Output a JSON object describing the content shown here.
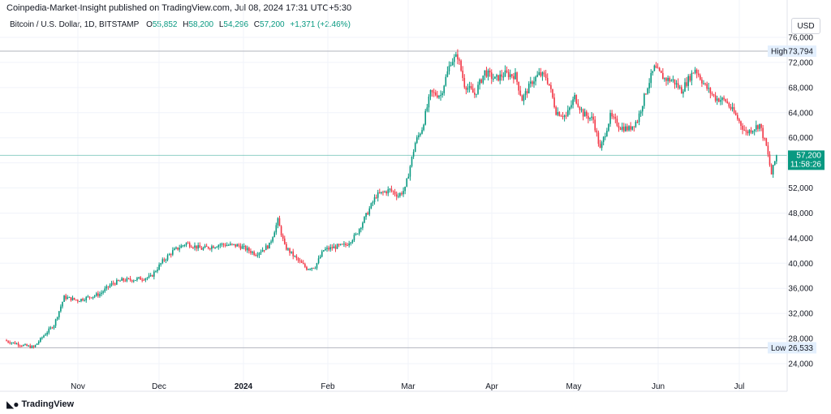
{
  "header": {
    "publisher_line": "Coinpedia-Market-Insight published on TradingView.com, Jul 08, 2024 17:31 UTC+5:30"
  },
  "legend": {
    "symbol": "Bitcoin / U.S. Dollar, 1D, BITSTAMP",
    "o_label": "O",
    "o_value": "55,852",
    "h_label": "H",
    "h_value": "58,200",
    "l_label": "L",
    "l_value": "54,296",
    "c_label": "C",
    "c_value": "57,200",
    "change": "+1,371 (+2.46%)"
  },
  "currency_button": "USD",
  "footer": {
    "brand": "TradingView"
  },
  "colors": {
    "up": "#089981",
    "down": "#f23645",
    "grid": "#f0f3fa",
    "last_price_bg": "#089981",
    "hl_label_bg": "#e3effd",
    "hl_line": "#b2b5be"
  },
  "chart_data": {
    "type": "candlestick",
    "ylim": [
      22000,
      77000
    ],
    "x_tick_labels": [
      "Nov",
      "Dec",
      "2024",
      "Feb",
      "Mar",
      "Apr",
      "May",
      "Jun",
      "Jul"
    ],
    "y_tick_values": [
      24000,
      28000,
      32000,
      36000,
      40000,
      44000,
      48000,
      52000,
      56000,
      60000,
      64000,
      68000,
      72000,
      76000
    ],
    "y_tick_labels": [
      "24,000",
      "28,000",
      "32,000",
      "36,000",
      "40,000",
      "44,000",
      "48,000",
      "52,000",
      "56,000",
      "60,000",
      "64,000",
      "68,000",
      "72,000",
      "76,000"
    ],
    "high_marker": {
      "label": "High",
      "value": 73794,
      "value_text": "73,794"
    },
    "low_marker": {
      "label": "Low",
      "value": 26533,
      "value_text": "26,533"
    },
    "last_price": {
      "value": 57200,
      "value_text": "57,200",
      "countdown": "11:58:26"
    },
    "close_path": [
      [
        0,
        27600
      ],
      [
        10,
        26900
      ],
      [
        16,
        26600
      ],
      [
        22,
        28500
      ],
      [
        28,
        30200
      ],
      [
        34,
        34600
      ],
      [
        42,
        34100
      ],
      [
        55,
        35100
      ],
      [
        62,
        36700
      ],
      [
        68,
        37300
      ],
      [
        75,
        37400
      ],
      [
        85,
        37800
      ],
      [
        92,
        40300
      ],
      [
        98,
        41900
      ],
      [
        106,
        43200
      ],
      [
        115,
        42300
      ],
      [
        126,
        43000
      ],
      [
        137,
        42800
      ],
      [
        147,
        41500
      ],
      [
        155,
        42900
      ],
      [
        160,
        46800
      ],
      [
        164,
        42700
      ],
      [
        172,
        40400
      ],
      [
        177,
        39200
      ],
      [
        182,
        39500
      ],
      [
        187,
        42100
      ],
      [
        194,
        42600
      ],
      [
        200,
        42900
      ],
      [
        206,
        44500
      ],
      [
        212,
        47600
      ],
      [
        218,
        50800
      ],
      [
        226,
        51700
      ],
      [
        231,
        50800
      ],
      [
        235,
        51800
      ],
      [
        241,
        59200
      ],
      [
        245,
        61500
      ],
      [
        250,
        67100
      ],
      [
        256,
        66800
      ],
      [
        262,
        72200
      ],
      [
        266,
        73000
      ],
      [
        270,
        68500
      ],
      [
        276,
        66900
      ],
      [
        282,
        70500
      ],
      [
        288,
        69300
      ],
      [
        294,
        70200
      ],
      [
        300,
        69900
      ],
      [
        304,
        66100
      ],
      [
        310,
        69000
      ],
      [
        314,
        70100
      ],
      [
        318,
        69700
      ],
      [
        320,
        68400
      ],
      [
        324,
        64200
      ],
      [
        330,
        63400
      ],
      [
        335,
        66500
      ],
      [
        340,
        63800
      ],
      [
        346,
        62900
      ],
      [
        350,
        58100
      ],
      [
        356,
        63400
      ],
      [
        362,
        61700
      ],
      [
        367,
        61400
      ],
      [
        372,
        62800
      ],
      [
        378,
        68300
      ],
      [
        382,
        71100
      ],
      [
        388,
        69400
      ],
      [
        393,
        69100
      ],
      [
        398,
        67500
      ],
      [
        402,
        69300
      ],
      [
        406,
        71000
      ],
      [
        412,
        68200
      ],
      [
        418,
        66300
      ],
      [
        424,
        65900
      ],
      [
        430,
        63500
      ],
      [
        436,
        60800
      ],
      [
        441,
        61600
      ],
      [
        444,
        62100
      ],
      [
        448,
        58600
      ],
      [
        451,
        54200
      ],
      [
        454,
        57200
      ]
    ]
  }
}
